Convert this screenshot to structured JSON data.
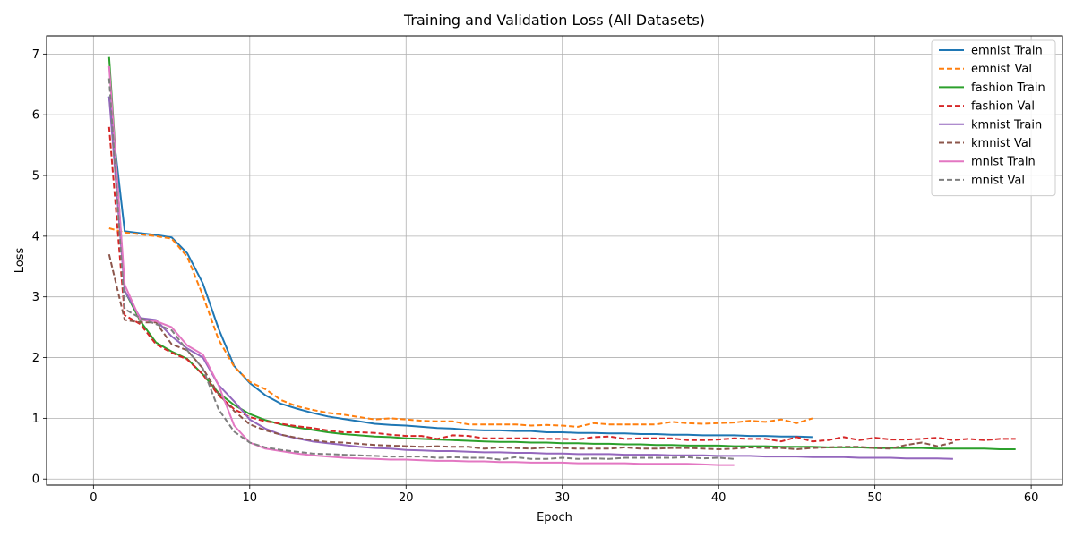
{
  "chart_data": {
    "type": "line",
    "title": "Training and Validation Loss (All Datasets)",
    "xlabel": "Epoch",
    "ylabel": "Loss",
    "xlim": [
      -3,
      62
    ],
    "ylim": [
      -0.1,
      7.3
    ],
    "xticks": [
      0,
      10,
      20,
      30,
      40,
      50,
      60
    ],
    "yticks": [
      0,
      1,
      2,
      3,
      4,
      5,
      6,
      7
    ],
    "grid": true,
    "legend_position": "top-right",
    "series": [
      {
        "name": "emnist Train",
        "color": "#1f77b4",
        "style": "solid",
        "x": [
          1,
          2,
          3,
          4,
          5,
          6,
          7,
          8,
          9,
          10,
          11,
          12,
          13,
          14,
          15,
          16,
          17,
          18,
          19,
          20,
          21,
          22,
          23,
          24,
          25,
          26,
          27,
          28,
          29,
          30,
          31,
          32,
          33,
          34,
          35,
          36,
          37,
          38,
          39,
          40,
          41,
          42,
          43,
          44,
          45,
          46
        ],
        "y": [
          6.3,
          4.08,
          4.05,
          4.02,
          3.98,
          3.72,
          3.22,
          2.48,
          1.86,
          1.58,
          1.38,
          1.24,
          1.16,
          1.09,
          1.03,
          0.99,
          0.95,
          0.91,
          0.89,
          0.88,
          0.86,
          0.84,
          0.83,
          0.81,
          0.8,
          0.8,
          0.79,
          0.79,
          0.77,
          0.77,
          0.76,
          0.76,
          0.75,
          0.75,
          0.74,
          0.74,
          0.73,
          0.73,
          0.72,
          0.72,
          0.72,
          0.71,
          0.71,
          0.7,
          0.7,
          0.69
        ]
      },
      {
        "name": "emnist Val",
        "color": "#ff7f0e",
        "style": "dashed",
        "x": [
          1,
          2,
          3,
          4,
          5,
          6,
          7,
          8,
          9,
          10,
          11,
          12,
          13,
          14,
          15,
          16,
          17,
          18,
          19,
          20,
          21,
          22,
          23,
          24,
          25,
          26,
          27,
          28,
          29,
          30,
          31,
          32,
          33,
          34,
          35,
          36,
          37,
          38,
          39,
          40,
          41,
          42,
          43,
          44,
          45,
          46
        ],
        "y": [
          4.13,
          4.06,
          4.03,
          4.0,
          3.96,
          3.66,
          3.02,
          2.3,
          1.85,
          1.6,
          1.48,
          1.3,
          1.2,
          1.14,
          1.09,
          1.06,
          1.02,
          0.98,
          1.0,
          0.98,
          0.96,
          0.95,
          0.95,
          0.9,
          0.9,
          0.9,
          0.9,
          0.88,
          0.89,
          0.88,
          0.86,
          0.92,
          0.9,
          0.9,
          0.9,
          0.9,
          0.94,
          0.92,
          0.91,
          0.92,
          0.93,
          0.96,
          0.94,
          0.98,
          0.92,
          1.0
        ]
      },
      {
        "name": "fashion Train",
        "color": "#2ca02c",
        "style": "solid",
        "x": [
          1,
          2,
          3,
          4,
          5,
          6,
          7,
          8,
          9,
          10,
          11,
          12,
          13,
          14,
          15,
          16,
          17,
          18,
          19,
          20,
          21,
          22,
          23,
          24,
          25,
          26,
          27,
          28,
          29,
          30,
          31,
          32,
          33,
          34,
          35,
          36,
          37,
          38,
          39,
          40,
          41,
          42,
          43,
          44,
          45,
          46,
          47,
          48,
          49,
          50,
          51,
          52,
          53,
          54,
          55,
          56,
          57,
          58,
          59
        ],
        "y": [
          6.95,
          3.1,
          2.6,
          2.25,
          2.1,
          1.98,
          1.72,
          1.42,
          1.22,
          1.07,
          0.97,
          0.9,
          0.85,
          0.81,
          0.77,
          0.74,
          0.72,
          0.7,
          0.69,
          0.67,
          0.66,
          0.65,
          0.64,
          0.63,
          0.62,
          0.61,
          0.61,
          0.6,
          0.6,
          0.59,
          0.59,
          0.58,
          0.58,
          0.57,
          0.57,
          0.56,
          0.56,
          0.55,
          0.55,
          0.55,
          0.54,
          0.54,
          0.54,
          0.53,
          0.53,
          0.53,
          0.52,
          0.52,
          0.52,
          0.51,
          0.51,
          0.51,
          0.51,
          0.5,
          0.5,
          0.5,
          0.5,
          0.49,
          0.49
        ]
      },
      {
        "name": "fashion Val",
        "color": "#d62728",
        "style": "dashed",
        "x": [
          1,
          2,
          3,
          4,
          5,
          6,
          7,
          8,
          9,
          10,
          11,
          12,
          13,
          14,
          15,
          16,
          17,
          18,
          19,
          20,
          21,
          22,
          23,
          24,
          25,
          26,
          27,
          28,
          29,
          30,
          31,
          32,
          33,
          34,
          35,
          36,
          37,
          38,
          39,
          40,
          41,
          42,
          43,
          44,
          45,
          46,
          47,
          48,
          49,
          50,
          51,
          52,
          53,
          54,
          55,
          56,
          57,
          58,
          59
        ],
        "y": [
          5.8,
          2.7,
          2.55,
          2.22,
          2.08,
          1.97,
          1.72,
          1.38,
          1.15,
          1.02,
          0.95,
          0.91,
          0.87,
          0.84,
          0.8,
          0.77,
          0.77,
          0.76,
          0.73,
          0.71,
          0.71,
          0.66,
          0.72,
          0.71,
          0.67,
          0.67,
          0.67,
          0.67,
          0.66,
          0.66,
          0.65,
          0.69,
          0.7,
          0.66,
          0.67,
          0.67,
          0.67,
          0.64,
          0.64,
          0.65,
          0.67,
          0.66,
          0.66,
          0.62,
          0.69,
          0.62,
          0.64,
          0.69,
          0.64,
          0.68,
          0.65,
          0.65,
          0.66,
          0.68,
          0.64,
          0.66,
          0.64,
          0.66,
          0.66
        ]
      },
      {
        "name": "kmnist Train",
        "color": "#9467bd",
        "style": "solid",
        "x": [
          1,
          2,
          3,
          4,
          5,
          6,
          7,
          8,
          9,
          10,
          11,
          12,
          13,
          14,
          15,
          16,
          17,
          18,
          19,
          20,
          21,
          22,
          23,
          24,
          25,
          26,
          27,
          28,
          29,
          30,
          31,
          32,
          33,
          34,
          35,
          36,
          37,
          38,
          39,
          40,
          41,
          42,
          43,
          44,
          45,
          46,
          47,
          48,
          49,
          50,
          51,
          52,
          53,
          54,
          55
        ],
        "y": [
          6.3,
          3.1,
          2.65,
          2.62,
          2.35,
          2.15,
          2.0,
          1.55,
          1.28,
          0.98,
          0.83,
          0.73,
          0.67,
          0.62,
          0.59,
          0.56,
          0.53,
          0.51,
          0.5,
          0.48,
          0.47,
          0.46,
          0.46,
          0.45,
          0.44,
          0.44,
          0.43,
          0.43,
          0.42,
          0.42,
          0.41,
          0.41,
          0.41,
          0.4,
          0.4,
          0.4,
          0.39,
          0.39,
          0.39,
          0.38,
          0.38,
          0.38,
          0.37,
          0.37,
          0.37,
          0.36,
          0.36,
          0.36,
          0.35,
          0.35,
          0.35,
          0.34,
          0.34,
          0.34,
          0.33
        ]
      },
      {
        "name": "kmnist Val",
        "color": "#8c564b",
        "style": "dashed",
        "x": [
          1,
          2,
          3,
          4,
          5,
          6,
          7,
          8,
          9,
          10,
          11,
          12,
          13,
          14,
          15,
          16,
          17,
          18,
          19,
          20,
          21,
          22,
          23,
          24,
          25,
          26,
          27,
          28,
          29,
          30,
          31,
          32,
          33,
          34,
          35,
          36,
          37,
          38,
          39,
          40,
          41,
          42,
          43,
          44,
          45,
          46,
          47,
          48,
          49,
          50,
          51,
          52,
          53,
          54,
          55
        ],
        "y": [
          3.7,
          2.62,
          2.58,
          2.58,
          2.22,
          2.12,
          1.82,
          1.4,
          1.12,
          0.9,
          0.8,
          0.73,
          0.68,
          0.64,
          0.61,
          0.6,
          0.58,
          0.56,
          0.55,
          0.54,
          0.53,
          0.54,
          0.53,
          0.53,
          0.5,
          0.52,
          0.51,
          0.5,
          0.52,
          0.51,
          0.5,
          0.5,
          0.5,
          0.52,
          0.5,
          0.5,
          0.51,
          0.51,
          0.5,
          0.49,
          0.5,
          0.52,
          0.51,
          0.51,
          0.49,
          0.51,
          0.52,
          0.53,
          0.53,
          0.51,
          0.5,
          0.56,
          0.6,
          0.54,
          0.6
        ]
      },
      {
        "name": "mnist Train",
        "color": "#e377c2",
        "style": "solid",
        "x": [
          1,
          2,
          3,
          4,
          5,
          6,
          7,
          8,
          9,
          10,
          11,
          12,
          13,
          14,
          15,
          16,
          17,
          18,
          19,
          20,
          21,
          22,
          23,
          24,
          25,
          26,
          27,
          28,
          29,
          30,
          31,
          32,
          33,
          34,
          35,
          36,
          37,
          38,
          39,
          40,
          41
        ],
        "y": [
          6.8,
          3.2,
          2.62,
          2.6,
          2.5,
          2.2,
          2.05,
          1.55,
          0.88,
          0.6,
          0.5,
          0.46,
          0.42,
          0.39,
          0.37,
          0.35,
          0.34,
          0.33,
          0.32,
          0.32,
          0.31,
          0.3,
          0.3,
          0.29,
          0.29,
          0.28,
          0.28,
          0.27,
          0.27,
          0.27,
          0.26,
          0.26,
          0.26,
          0.26,
          0.25,
          0.25,
          0.25,
          0.25,
          0.24,
          0.23,
          0.23
        ]
      },
      {
        "name": "mnist Val",
        "color": "#7f7f7f",
        "style": "dashed",
        "x": [
          1,
          2,
          3,
          4,
          5,
          6,
          7,
          8,
          9,
          10,
          11,
          12,
          13,
          14,
          15,
          16,
          17,
          18,
          19,
          20,
          21,
          22,
          23,
          24,
          25,
          26,
          27,
          28,
          29,
          30,
          31,
          32,
          33,
          34,
          35,
          36,
          37,
          38,
          39,
          40,
          41
        ],
        "y": [
          6.6,
          2.8,
          2.65,
          2.55,
          2.45,
          2.12,
          1.82,
          1.15,
          0.78,
          0.6,
          0.52,
          0.48,
          0.45,
          0.42,
          0.41,
          0.4,
          0.39,
          0.38,
          0.37,
          0.37,
          0.37,
          0.35,
          0.36,
          0.35,
          0.35,
          0.32,
          0.36,
          0.33,
          0.33,
          0.35,
          0.33,
          0.34,
          0.33,
          0.35,
          0.35,
          0.35,
          0.35,
          0.36,
          0.34,
          0.35,
          0.33
        ]
      }
    ]
  }
}
